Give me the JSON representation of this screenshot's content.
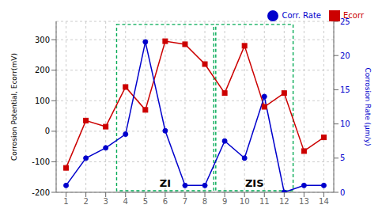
{
  "chart_data": {
    "type": "line",
    "x": [
      1,
      2,
      3,
      4,
      5,
      6,
      7,
      8,
      9,
      10,
      11,
      12,
      13,
      14
    ],
    "xlim": [
      0.5,
      14.5
    ],
    "xticks": [
      1,
      2,
      3,
      4,
      5,
      6,
      7,
      8,
      9,
      10,
      11,
      12,
      13,
      14
    ],
    "ylabel": "Corrosion Potential, Ecorr(mV)",
    "y2label": "Corrosion Rate (μm/y)",
    "ylim": [
      -200,
      360
    ],
    "yticks": [
      -200,
      -100,
      0,
      100,
      200,
      300
    ],
    "y2lim": [
      0,
      25
    ],
    "y2ticks": [
      0,
      5,
      10,
      15,
      20,
      25
    ],
    "grid": true,
    "legend": "upper right",
    "series": [
      {
        "name": "Ecorr",
        "color": "#cc0000",
        "marker": "square",
        "values": [
          -120,
          35,
          15,
          145,
          70,
          295,
          285,
          220,
          125,
          280,
          80,
          125,
          -65,
          -20
        ]
      },
      {
        "name": "Corr. Rate",
        "color": "#0000cc",
        "marker": "circle",
        "axis": "y2",
        "values": [
          1,
          5,
          6.5,
          8.5,
          22,
          9,
          1,
          1,
          7.5,
          5,
          14,
          0,
          1,
          1
        ]
      }
    ],
    "annotations": [
      {
        "text": "ZI",
        "x": 6,
        "y": -170
      },
      {
        "text": "ZIS",
        "x": 10.5,
        "y": -170
      }
    ],
    "regions": [
      {
        "x1": 3.55,
        "x2": 8.45,
        "y1": -195,
        "y2": 350,
        "color": "#00aa55"
      },
      {
        "x1": 8.55,
        "x2": 12.45,
        "y1": -195,
        "y2": 350,
        "color": "#00aa55"
      }
    ]
  }
}
